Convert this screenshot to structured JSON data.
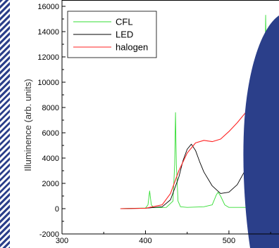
{
  "chart_data": {
    "type": "line",
    "title": "",
    "xlabel": "",
    "ylabel": "Illuminence (arb. units)",
    "xlim": [
      300,
      560
    ],
    "ylim": [
      -2000,
      16500
    ],
    "x_ticks": [
      300,
      400,
      500
    ],
    "y_ticks": [
      -2000,
      0,
      2000,
      4000,
      6000,
      8000,
      10000,
      12000,
      14000,
      16000
    ],
    "grid": false,
    "legend_position": "top-left",
    "series": [
      {
        "name": "CFL",
        "color": "#33dd33",
        "x": [
          370,
          400,
          403,
          405,
          407,
          410,
          425,
          433,
          435,
          436,
          437,
          439,
          442,
          450,
          470,
          480,
          485,
          487,
          490,
          495,
          500,
          520,
          535,
          540,
          543,
          544,
          545,
          546,
          547,
          548,
          550,
          555,
          560
        ],
        "y": [
          0,
          50,
          300,
          1400,
          300,
          80,
          100,
          600,
          3500,
          7600,
          3500,
          600,
          150,
          100,
          150,
          300,
          1100,
          1300,
          1000,
          300,
          100,
          100,
          400,
          1500,
          10000,
          15300,
          11000,
          5000,
          2500,
          1200,
          600,
          200,
          100
        ]
      },
      {
        "name": "LED",
        "color": "#000000",
        "x": [
          370,
          400,
          420,
          430,
          440,
          445,
          450,
          455,
          460,
          465,
          470,
          480,
          490,
          500,
          510,
          520,
          530,
          540,
          550,
          560,
          570,
          580,
          585,
          590
        ],
        "y": [
          0,
          30,
          150,
          700,
          2500,
          3800,
          4700,
          5100,
          4600,
          3700,
          2900,
          1800,
          1200,
          1300,
          1900,
          3100,
          4700,
          6500,
          8400,
          10200,
          11700,
          12400,
          12100,
          10200
        ]
      },
      {
        "name": "halogen",
        "color": "#ff2222",
        "x": [
          370,
          400,
          420,
          430,
          440,
          450,
          460,
          470,
          480,
          490,
          500,
          510,
          520,
          530,
          540,
          550,
          560,
          570,
          580,
          590,
          600
        ],
        "y": [
          0,
          30,
          300,
          1200,
          3000,
          4400,
          5200,
          5400,
          5300,
          5500,
          6100,
          6800,
          7600,
          8500,
          9500,
          10500,
          11500,
          12300,
          12900,
          12800,
          11700
        ]
      }
    ]
  },
  "decor": {
    "stripe_color": "#2b3f8a",
    "slide_panel_color": "#2b3f8a"
  }
}
